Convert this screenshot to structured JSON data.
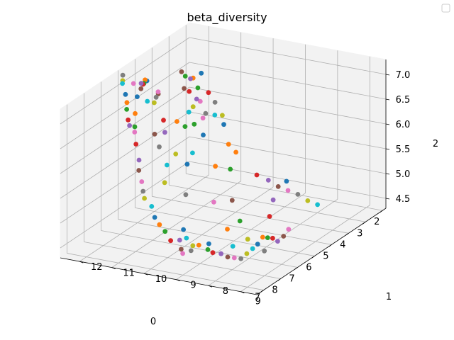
{
  "chart_data": {
    "type": "scatter",
    "projection": "3d",
    "title": "beta_diversity",
    "xlabel": "0",
    "ylabel": "1",
    "zlabel": "2",
    "xlim": [
      1.8,
      9.4
    ],
    "ylim": [
      6.5,
      12.6
    ],
    "zlim": [
      4.3,
      7.3
    ],
    "x_ticks": [
      "2",
      "3",
      "4",
      "5",
      "6",
      "7",
      "8",
      "9"
    ],
    "y_ticks": [
      "7",
      "8",
      "9",
      "10",
      "11",
      "12"
    ],
    "z_ticks": [
      "4.5",
      "5.0",
      "5.5",
      "6.0",
      "6.5",
      "7.0"
    ],
    "grid": true,
    "legend": "top-right, empty",
    "palette": [
      "#1f77b4",
      "#ff7f0e",
      "#2ca02c",
      "#d62728",
      "#9467bd",
      "#8c564b",
      "#e377c2",
      "#7f7f7f",
      "#bcbd22",
      "#17becf"
    ],
    "points": [
      {
        "x": 2.05,
        "y": 12.1,
        "z": 6.4
      },
      {
        "x": 2.15,
        "y": 12.3,
        "z": 6.3
      },
      {
        "x": 2.25,
        "y": 12.1,
        "z": 6.15
      },
      {
        "x": 2.1,
        "y": 11.85,
        "z": 6.05
      },
      {
        "x": 2.4,
        "y": 12.25,
        "z": 6.35
      },
      {
        "x": 2.55,
        "y": 12.45,
        "z": 6.5
      },
      {
        "x": 2.3,
        "y": 12.0,
        "z": 5.9
      },
      {
        "x": 2.0,
        "y": 11.7,
        "z": 5.85
      },
      {
        "x": 1.95,
        "y": 11.5,
        "z": 5.6
      },
      {
        "x": 2.2,
        "y": 11.6,
        "z": 5.65
      },
      {
        "x": 2.05,
        "y": 11.4,
        "z": 5.45
      },
      {
        "x": 2.15,
        "y": 11.2,
        "z": 5.1
      },
      {
        "x": 2.8,
        "y": 12.2,
        "z": 6.5
      },
      {
        "x": 2.95,
        "y": 12.0,
        "z": 6.25
      },
      {
        "x": 2.7,
        "y": 11.9,
        "z": 6.05
      },
      {
        "x": 3.15,
        "y": 12.05,
        "z": 6.35
      },
      {
        "x": 2.9,
        "y": 11.6,
        "z": 5.75
      },
      {
        "x": 2.55,
        "y": 11.7,
        "z": 5.75
      },
      {
        "x": 3.1,
        "y": 11.8,
        "z": 6.0
      },
      {
        "x": 3.35,
        "y": 11.8,
        "z": 5.95
      },
      {
        "x": 4.3,
        "y": 12.6,
        "z": 6.7
      },
      {
        "x": 4.6,
        "y": 12.5,
        "z": 6.8
      },
      {
        "x": 4.85,
        "y": 12.4,
        "z": 6.8
      },
      {
        "x": 5.1,
        "y": 12.3,
        "z": 6.85
      },
      {
        "x": 5.4,
        "y": 12.2,
        "z": 6.95
      },
      {
        "x": 5.6,
        "y": 12.1,
        "z": 6.9
      },
      {
        "x": 5.85,
        "y": 12.2,
        "z": 7.05
      },
      {
        "x": 6.1,
        "y": 12.4,
        "z": 7.25
      },
      {
        "x": 6.3,
        "y": 12.3,
        "z": 7.2
      },
      {
        "x": 6.5,
        "y": 12.2,
        "z": 7.2
      },
      {
        "x": 6.7,
        "y": 12.0,
        "z": 7.05
      },
      {
        "x": 6.9,
        "y": 11.85,
        "z": 6.95
      },
      {
        "x": 7.2,
        "y": 11.7,
        "z": 6.9
      },
      {
        "x": 7.4,
        "y": 11.55,
        "z": 6.75
      },
      {
        "x": 7.6,
        "y": 11.4,
        "z": 6.7
      },
      {
        "x": 4.2,
        "y": 12.3,
        "z": 6.45
      },
      {
        "x": 4.4,
        "y": 12.2,
        "z": 6.55
      },
      {
        "x": 4.8,
        "y": 12.05,
        "z": 6.55
      },
      {
        "x": 5.2,
        "y": 11.9,
        "z": 6.55
      },
      {
        "x": 5.7,
        "y": 11.85,
        "z": 6.7
      },
      {
        "x": 6.2,
        "y": 11.9,
        "z": 6.9
      },
      {
        "x": 6.7,
        "y": 11.7,
        "z": 6.7
      },
      {
        "x": 7.1,
        "y": 11.5,
        "z": 6.55
      },
      {
        "x": 7.6,
        "y": 11.2,
        "z": 6.35
      },
      {
        "x": 7.8,
        "y": 11.0,
        "z": 6.1
      },
      {
        "x": 8.0,
        "y": 10.9,
        "z": 5.95
      },
      {
        "x": 8.4,
        "y": 10.6,
        "z": 5.85
      },
      {
        "x": 8.7,
        "y": 10.4,
        "z": 5.75
      },
      {
        "x": 9.0,
        "y": 10.2,
        "z": 5.7
      },
      {
        "x": 8.95,
        "y": 10.0,
        "z": 5.55
      },
      {
        "x": 9.15,
        "y": 9.8,
        "z": 5.4
      },
      {
        "x": 9.25,
        "y": 9.6,
        "z": 5.3
      },
      {
        "x": 9.3,
        "y": 9.4,
        "z": 5.2
      },
      {
        "x": 9.35,
        "y": 9.2,
        "z": 5.05
      },
      {
        "x": 9.2,
        "y": 9.0,
        "z": 5.05
      },
      {
        "x": 9.3,
        "y": 8.9,
        "z": 4.9
      },
      {
        "x": 9.4,
        "y": 8.8,
        "z": 4.85
      },
      {
        "x": 9.1,
        "y": 8.7,
        "z": 4.85
      },
      {
        "x": 8.9,
        "y": 8.75,
        "z": 4.9
      },
      {
        "x": 8.8,
        "y": 9.0,
        "z": 5.0
      },
      {
        "x": 8.6,
        "y": 9.2,
        "z": 5.1
      },
      {
        "x": 8.45,
        "y": 8.8,
        "z": 4.8
      },
      {
        "x": 8.3,
        "y": 8.6,
        "z": 4.7
      },
      {
        "x": 8.1,
        "y": 8.55,
        "z": 4.6
      },
      {
        "x": 7.9,
        "y": 8.4,
        "z": 4.55
      },
      {
        "x": 7.7,
        "y": 8.3,
        "z": 4.45
      },
      {
        "x": 7.5,
        "y": 8.2,
        "z": 4.4
      },
      {
        "x": 7.3,
        "y": 8.1,
        "z": 4.35
      },
      {
        "x": 7.05,
        "y": 8.05,
        "z": 4.4
      },
      {
        "x": 6.8,
        "y": 8.0,
        "z": 4.45
      },
      {
        "x": 6.6,
        "y": 7.95,
        "z": 4.5
      },
      {
        "x": 6.4,
        "y": 7.9,
        "z": 4.6
      },
      {
        "x": 6.2,
        "y": 7.85,
        "z": 4.55
      },
      {
        "x": 6.0,
        "y": 7.8,
        "z": 4.5
      },
      {
        "x": 5.8,
        "y": 7.75,
        "z": 4.4
      },
      {
        "x": 5.55,
        "y": 7.7,
        "z": 4.45
      },
      {
        "x": 5.35,
        "y": 7.65,
        "z": 4.55
      },
      {
        "x": 6.3,
        "y": 7.9,
        "z": 4.3
      },
      {
        "x": 6.9,
        "y": 8.1,
        "z": 4.65
      },
      {
        "x": 7.4,
        "y": 8.3,
        "z": 4.6
      },
      {
        "x": 8.05,
        "y": 8.7,
        "z": 4.75
      },
      {
        "x": 7.15,
        "y": 8.6,
        "z": 4.85
      },
      {
        "x": 6.6,
        "y": 8.5,
        "z": 4.9
      },
      {
        "x": 5.9,
        "y": 7.95,
        "z": 4.9
      },
      {
        "x": 5.4,
        "y": 8.1,
        "z": 5.1
      },
      {
        "x": 6.3,
        "y": 8.9,
        "z": 5.2
      },
      {
        "x": 7.0,
        "y": 9.1,
        "z": 5.3
      },
      {
        "x": 7.7,
        "y": 9.6,
        "z": 5.55
      },
      {
        "x": 8.0,
        "y": 10.1,
        "z": 5.8
      },
      {
        "x": 7.1,
        "y": 10.5,
        "z": 5.9
      },
      {
        "x": 6.1,
        "y": 10.4,
        "z": 5.7
      },
      {
        "x": 5.2,
        "y": 10.0,
        "z": 5.5
      },
      {
        "x": 4.7,
        "y": 9.8,
        "z": 5.35
      },
      {
        "x": 3.9,
        "y": 9.4,
        "z": 5.1
      },
      {
        "x": 3.6,
        "y": 9.2,
        "z": 4.95
      },
      {
        "x": 3.4,
        "y": 9.0,
        "z": 4.8
      },
      {
        "x": 3.2,
        "y": 8.8,
        "z": 4.7
      },
      {
        "x": 3.0,
        "y": 8.6,
        "z": 4.6
      },
      {
        "x": 2.8,
        "y": 8.4,
        "z": 4.45
      },
      {
        "x": 2.6,
        "y": 8.2,
        "z": 4.35
      },
      {
        "x": 3.1,
        "y": 8.9,
        "z": 4.85
      },
      {
        "x": 3.8,
        "y": 10.1,
        "z": 5.45
      },
      {
        "x": 4.9,
        "y": 11.1,
        "z": 6.1
      },
      {
        "x": 5.6,
        "y": 11.4,
        "z": 6.35
      },
      {
        "x": 5.9,
        "y": 11.2,
        "z": 6.2
      },
      {
        "x": 6.5,
        "y": 11.2,
        "z": 6.3
      },
      {
        "x": 7.3,
        "y": 11.4,
        "z": 6.5
      },
      {
        "x": 6.8,
        "y": 10.9,
        "z": 6.15
      },
      {
        "x": 6.4,
        "y": 10.6,
        "z": 5.95
      },
      {
        "x": 5.6,
        "y": 10.5,
        "z": 5.8
      },
      {
        "x": 4.4,
        "y": 10.8,
        "z": 5.85
      },
      {
        "x": 5.0,
        "y": 11.3,
        "z": 6.2
      },
      {
        "x": 3.6,
        "y": 11.5,
        "z": 5.8
      }
    ]
  }
}
